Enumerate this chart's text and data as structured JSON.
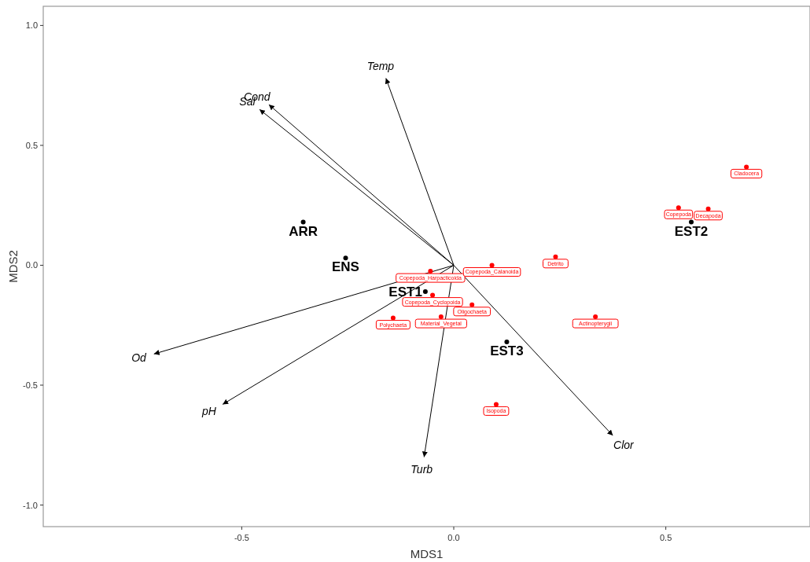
{
  "chart_data": {
    "type": "scatter",
    "xlabel": "MDS1",
    "ylabel": "MDS2",
    "xlim": [
      -0.968,
      0.84
    ],
    "ylim": [
      -1.09,
      1.08
    ],
    "xticks": [
      {
        "value": -0.5,
        "label": "-0.5"
      },
      {
        "value": 0,
        "label": "0.0"
      },
      {
        "value": 0.5,
        "label": "0.5"
      }
    ],
    "yticks": [
      {
        "value": -1,
        "label": "-1.0"
      },
      {
        "value": -0.5,
        "label": "-0.5"
      },
      {
        "value": 0,
        "label": "0.0"
      },
      {
        "value": 0.5,
        "label": "0.5"
      },
      {
        "value": 1,
        "label": "1.0"
      }
    ],
    "grid": false,
    "legend": false,
    "marker": "circle",
    "series": [
      {
        "type": "line",
        "name": "Temp",
        "marker": "none",
        "color": "#000000",
        "x": [
          0,
          -0.16
        ],
        "values": [
          0,
          0.78
        ]
      },
      {
        "type": "line",
        "name": "Cond",
        "marker": "none",
        "color": "#000000",
        "x": [
          0,
          -0.436
        ],
        "values": [
          0,
          0.67
        ]
      },
      {
        "type": "line",
        "name": "Sal",
        "marker": "none",
        "color": "#000000",
        "x": [
          0,
          -0.458
        ],
        "values": [
          0,
          0.65
        ]
      },
      {
        "type": "line",
        "name": "Od",
        "marker": "none",
        "color": "#000000",
        "x": [
          0,
          -0.707
        ],
        "values": [
          0,
          -0.37
        ]
      },
      {
        "type": "line",
        "name": "pH",
        "marker": "none",
        "color": "#000000",
        "x": [
          0,
          -0.545
        ],
        "values": [
          0,
          -0.58
        ]
      },
      {
        "type": "line",
        "name": "Turb",
        "marker": "none",
        "color": "#000000",
        "x": [
          0,
          -0.07
        ],
        "values": [
          0,
          -0.8
        ]
      },
      {
        "type": "line",
        "name": "Clor",
        "marker": "none",
        "color": "#000000",
        "x": [
          0,
          0.375
        ],
        "values": [
          0,
          -0.71
        ]
      },
      {
        "color": "#ff0000",
        "x": [
          -0.055,
          0.09,
          -0.05,
          0.043,
          -0.143,
          -0.03,
          0.24,
          0.334,
          0.1,
          0.6,
          0.53,
          0.69
        ],
        "values": [
          -0.025,
          0,
          -0.125,
          -0.165,
          -0.22,
          -0.215,
          0.035,
          -0.215,
          -0.58,
          0.235,
          0.24,
          0.41
        ],
        "value_labels": [
          "Copepoda_Harpacticoida",
          "Copepoda_Calanoida",
          "Copepoda_Cyclopoida",
          "Oligochaeta",
          "Polychaeta",
          "Material_Vegetal",
          "Detrito",
          "Actinopterygii",
          "Isopoda",
          "Decapoda",
          "Copepoda",
          "Cladocera"
        ]
      },
      {
        "color": "#000000",
        "x": [
          -0.355,
          -0.255,
          -0.067,
          0.56,
          0.125
        ],
        "values": [
          0.18,
          0.03,
          -0.11,
          0.18,
          -0.32
        ],
        "value_labels": [
          "ARR",
          "ENS",
          "EST1",
          "EST2",
          "EST3"
        ]
      }
    ]
  }
}
